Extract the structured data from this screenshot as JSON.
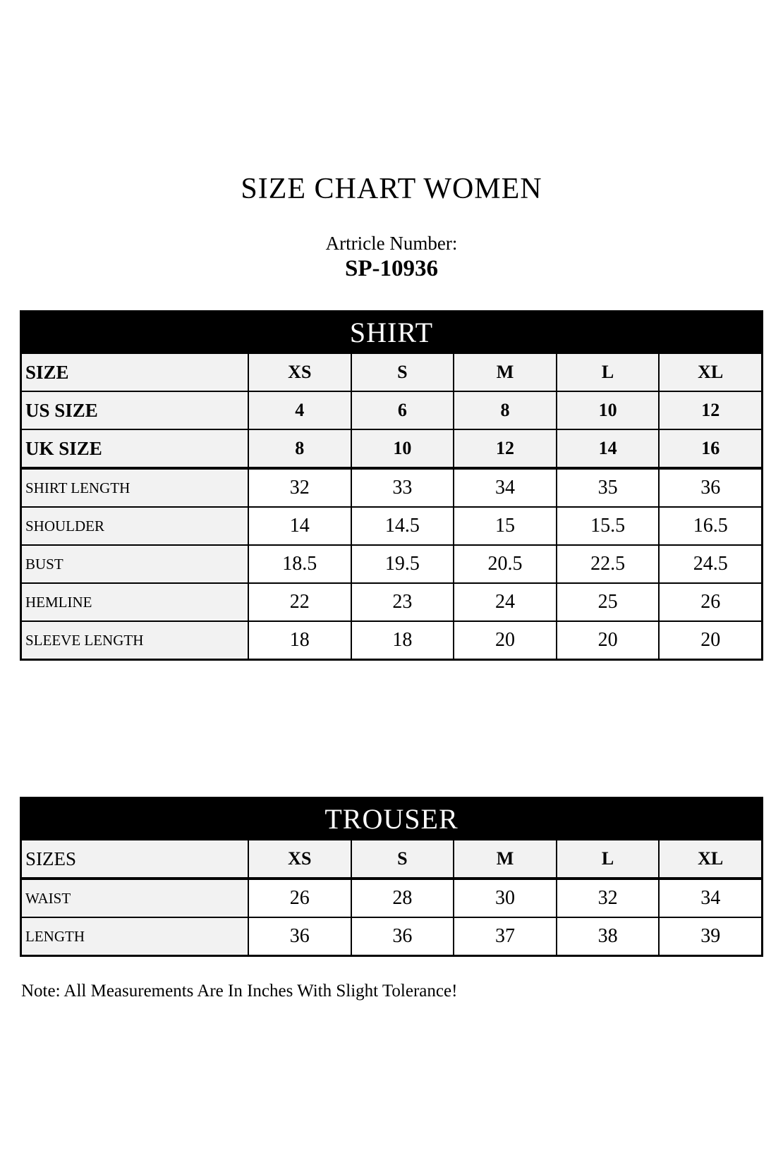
{
  "page": {
    "title": "SIZE CHART WOMEN",
    "article_label": "Artricle Number:",
    "article_number": "SP-10936",
    "note": "Note: All Measurements Are In Inches With Slight Tolerance!"
  },
  "colors": {
    "banner_bg": "#000000",
    "banner_text": "#ffffff",
    "shaded_cell_bg": "#f2f2f2",
    "data_cell_bg": "#ffffff",
    "border": "#000000",
    "text": "#000000"
  },
  "chart_data": [
    {
      "type": "table",
      "title": "SHIRT",
      "columns": [
        "XS",
        "S",
        "M",
        "L",
        "XL"
      ],
      "rows": [
        {
          "label": "SIZE",
          "values": [
            "XS",
            "S",
            "M",
            "L",
            "XL"
          ],
          "label_bold": true,
          "label_large": true,
          "values_bold": true,
          "shaded": true
        },
        {
          "label": "US SIZE",
          "values": [
            "4",
            "6",
            "8",
            "10",
            "12"
          ],
          "label_bold": true,
          "label_large": true,
          "values_bold": true,
          "shaded": true
        },
        {
          "label": "UK SIZE",
          "values": [
            "8",
            "10",
            "12",
            "14",
            "16"
          ],
          "label_bold": true,
          "label_large": true,
          "values_bold": true,
          "shaded": true
        },
        {
          "label": "SHIRT LENGTH",
          "values": [
            "32",
            "33",
            "34",
            "35",
            "36"
          ],
          "label_bold": false,
          "label_large": false,
          "values_bold": false,
          "shaded": false
        },
        {
          "label": "SHOULDER",
          "values": [
            "14",
            "14.5",
            "15",
            "15.5",
            "16.5"
          ],
          "label_bold": false,
          "label_large": false,
          "values_bold": false,
          "shaded": false
        },
        {
          "label": "BUST",
          "values": [
            "18.5",
            "19.5",
            "20.5",
            "22.5",
            "24.5"
          ],
          "label_bold": false,
          "label_large": false,
          "values_bold": false,
          "shaded": false
        },
        {
          "label": "HEMLINE",
          "values": [
            "22",
            "23",
            "24",
            "25",
            "26"
          ],
          "label_bold": false,
          "label_large": false,
          "values_bold": false,
          "shaded": false
        },
        {
          "label": "SLEEVE LENGTH",
          "values": [
            "18",
            "18",
            "20",
            "20",
            "20"
          ],
          "label_bold": false,
          "label_large": false,
          "values_bold": false,
          "shaded": false
        }
      ]
    },
    {
      "type": "table",
      "title": "TROUSER",
      "columns": [
        "XS",
        "S",
        "M",
        "L",
        "XL"
      ],
      "rows": [
        {
          "label": "SIZES",
          "values": [
            "XS",
            "S",
            "M",
            "L",
            "XL"
          ],
          "label_bold": false,
          "label_large": true,
          "values_bold": true,
          "shaded": true
        },
        {
          "label": "WAIST",
          "values": [
            "26",
            "28",
            "30",
            "32",
            "34"
          ],
          "label_bold": false,
          "label_large": false,
          "values_bold": false,
          "shaded": false
        },
        {
          "label": "LENGTH",
          "values": [
            "36",
            "36",
            "37",
            "38",
            "39"
          ],
          "label_bold": false,
          "label_large": false,
          "values_bold": false,
          "shaded": false
        }
      ]
    }
  ]
}
